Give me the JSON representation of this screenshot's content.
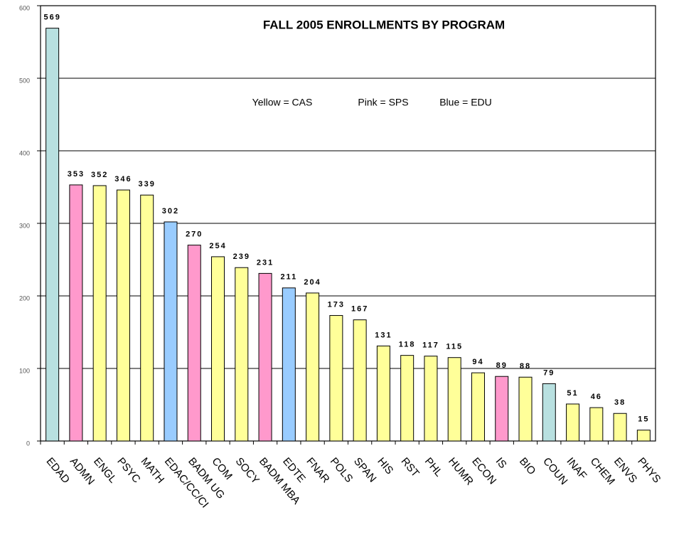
{
  "chart_data": {
    "type": "bar",
    "title": "FALL 2005 ENROLLMENTS BY PROGRAM",
    "annotations": [
      "Yellow = CAS",
      "Pink = SPS",
      "Blue = EDU"
    ],
    "categories": [
      "EDAD",
      "ADMN",
      "ENGL",
      "PSYC",
      "MATH",
      "EDAC/CC/CI",
      "BADM UG",
      "COM",
      "SOCY",
      "BADM MBA",
      "EDTE",
      "FNAR",
      "POLS",
      "SPAN",
      "HIS",
      "RST",
      "PHL",
      "HUMR",
      "ECON",
      "IS",
      "BIO",
      "COUN",
      "INAF",
      "CHEM",
      "ENVS",
      "PHYS"
    ],
    "values": [
      569,
      353,
      352,
      346,
      339,
      302,
      270,
      254,
      239,
      231,
      211,
      204,
      173,
      167,
      131,
      118,
      117,
      115,
      94,
      89,
      88,
      79,
      51,
      46,
      38,
      15
    ],
    "colors": [
      "#b8e0e0",
      "#ff99cc",
      "#ffff99",
      "#ffff99",
      "#ffff99",
      "#99ccff",
      "#ff99cc",
      "#ffff99",
      "#ffff99",
      "#ff99cc",
      "#99ccff",
      "#ffff99",
      "#ffff99",
      "#ffff99",
      "#ffff99",
      "#ffff99",
      "#ffff99",
      "#ffff99",
      "#ffff99",
      "#ff99cc",
      "#ffff99",
      "#b8e0e0",
      "#ffff99",
      "#ffff99",
      "#ffff99",
      "#ffff99"
    ],
    "ylim": [
      0,
      600
    ],
    "yticks": [
      0,
      100,
      200,
      300,
      400,
      500,
      600
    ],
    "grid": true
  }
}
